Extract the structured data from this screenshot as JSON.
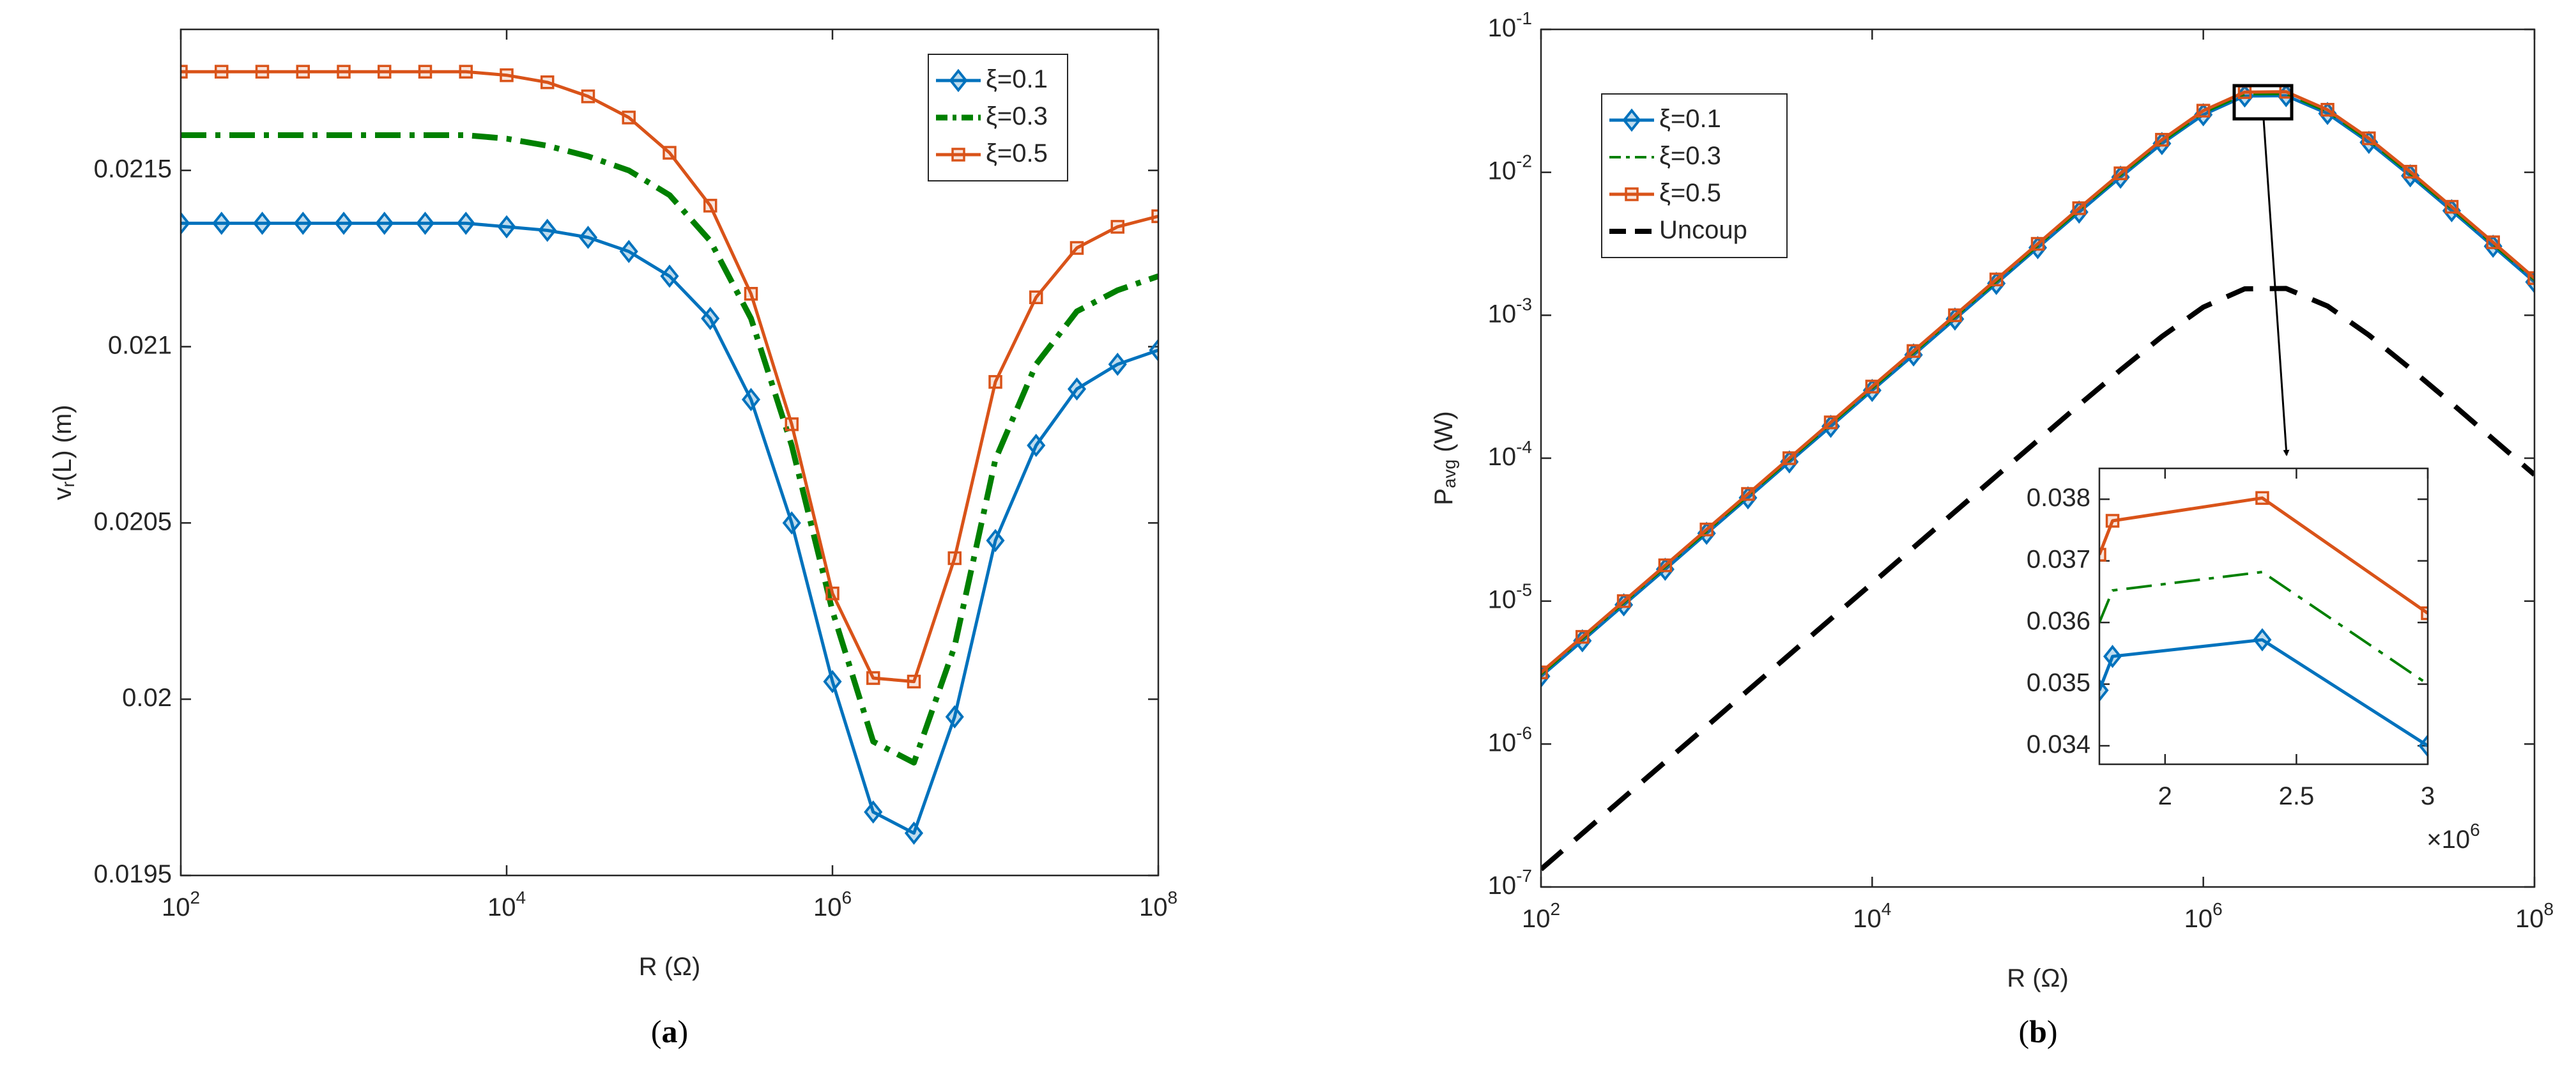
{
  "chart_data": [
    {
      "type": "line",
      "caption": "(a)",
      "xlabel": "R (Ω)",
      "ylabel": "v_{r}(L) (m)",
      "xscale": "log",
      "yscale": "linear",
      "x": [
        100.0,
        177.8,
        316.2,
        562.3,
        1000.0,
        1778.0,
        3162.0,
        5623.0,
        10000.0,
        17780.0,
        31620.0,
        56230.0,
        100000.0,
        177800.0,
        316200.0,
        562300.0,
        1000000.0,
        1778000.0,
        3162000.0,
        5623000.0,
        10000000.0,
        17780000.0,
        31620000.0,
        56230000.0,
        100000000.0
      ],
      "series": [
        {
          "name": "ξ=0.1",
          "color": "#0072BD",
          "linestyle": "solid",
          "linewidth": 5,
          "marker": "diamond",
          "values": [
            0.02135,
            0.02135,
            0.02135,
            0.02135,
            0.02135,
            0.02135,
            0.02135,
            0.02135,
            0.02134,
            0.02133,
            0.02131,
            0.02127,
            0.0212,
            0.02108,
            0.02085,
            0.0205,
            0.02005,
            0.01968,
            0.01962,
            0.01995,
            0.02045,
            0.02072,
            0.02088,
            0.02095,
            0.02099
          ]
        },
        {
          "name": "ξ=0.3",
          "color": "#008000",
          "linestyle": "dashdot",
          "linewidth": 9,
          "marker": null,
          "values": [
            0.0216,
            0.0216,
            0.0216,
            0.0216,
            0.0216,
            0.0216,
            0.0216,
            0.0216,
            0.02159,
            0.02157,
            0.02154,
            0.0215,
            0.02143,
            0.0213,
            0.02108,
            0.02072,
            0.02025,
            0.01988,
            0.01982,
            0.02015,
            0.02068,
            0.02095,
            0.0211,
            0.02116,
            0.0212
          ]
        },
        {
          "name": "ξ=0.5",
          "color": "#D95319",
          "linestyle": "solid",
          "linewidth": 5,
          "marker": "square",
          "values": [
            0.02178,
            0.02178,
            0.02178,
            0.02178,
            0.02178,
            0.02178,
            0.02178,
            0.02178,
            0.02177,
            0.02175,
            0.02171,
            0.02165,
            0.02155,
            0.0214,
            0.02115,
            0.02078,
            0.0203,
            0.02006,
            0.02005,
            0.0204,
            0.0209,
            0.02114,
            0.02128,
            0.02134,
            0.02137
          ]
        }
      ],
      "xlim": [
        100.0,
        100000000.0
      ],
      "xticks": [
        {
          "value": 100.0,
          "label": "10^{2}"
        },
        {
          "value": 10000.0,
          "label": "10^{4}"
        },
        {
          "value": 1000000.0,
          "label": "10^{6}"
        },
        {
          "value": 100000000.0,
          "label": "10^{8}"
        }
      ],
      "ylim": [
        0.0195,
        0.0219
      ],
      "yticks": [
        0.0195,
        0.02,
        0.0205,
        0.021,
        0.0215
      ],
      "legend": "upper right",
      "grid": false
    },
    {
      "type": "line",
      "caption": "(b)",
      "xlabel": "R (Ω)",
      "ylabel": "P_{avg} (W)",
      "xscale": "log",
      "yscale": "log",
      "x": [
        100.0,
        177.8,
        316.2,
        562.3,
        1000.0,
        1778.0,
        3162.0,
        5623.0,
        10000.0,
        17780.0,
        31620.0,
        56230.0,
        100000.0,
        177800.0,
        316200.0,
        562300.0,
        1000000.0,
        1778000.0,
        3162000.0,
        5623000.0,
        10000000.0,
        17780000.0,
        31620000.0,
        56230000.0,
        100000000.0
      ],
      "series": [
        {
          "name": "ξ=0.1",
          "color": "#0072BD",
          "linestyle": "solid",
          "linewidth": 5,
          "marker": "diamond",
          "values": [
            2.98e-06,
            5.28e-06,
            9.42e-06,
            1.67e-05,
            2.98e-05,
            5.28e-05,
            9.42e-05,
            0.000167,
            0.000298,
            0.000528,
            0.000941,
            0.00167,
            0.00297,
            0.00527,
            0.00925,
            0.0159,
            0.0253,
            0.0342,
            0.0344,
            0.0258,
            0.0162,
            0.00946,
            0.00539,
            0.00304,
            0.00171
          ]
        },
        {
          "name": "ξ=0.3",
          "color": "#008000",
          "linestyle": "dashdot",
          "linewidth": 4,
          "marker": null,
          "values": [
            3.07e-06,
            5.45e-06,
            9.72e-06,
            1.73e-05,
            3.07e-05,
            5.45e-05,
            9.72e-05,
            0.000173,
            0.000307,
            0.000545,
            0.00097,
            0.00172,
            0.00306,
            0.00543,
            0.00953,
            0.0163,
            0.0261,
            0.0352,
            0.0354,
            0.0266,
            0.0167,
            0.00975,
            0.00556,
            0.00314,
            0.00176
          ]
        },
        {
          "name": "ξ=0.5",
          "color": "#D95319",
          "linestyle": "solid",
          "linewidth": 5,
          "marker": "square",
          "values": [
            3.17e-06,
            5.62e-06,
            1e-05,
            1.78e-05,
            3.17e-05,
            5.62e-05,
            0.0001,
            0.000178,
            0.000317,
            0.000562,
            0.001,
            0.00178,
            0.00316,
            0.00561,
            0.00984,
            0.0169,
            0.027,
            0.0364,
            0.0366,
            0.0274,
            0.0173,
            0.0101,
            0.00574,
            0.00324,
            0.00182
          ]
        },
        {
          "name": "Uncoup",
          "color": "#000000",
          "linestyle": "dashed",
          "linewidth": 8,
          "marker": null,
          "values": [
            1.33e-07,
            2.37e-07,
            4.22e-07,
            7.5e-07,
            1.33e-06,
            2.37e-06,
            4.22e-06,
            7.5e-06,
            1.33e-05,
            2.37e-05,
            4.22e-05,
            7.5e-05,
            0.000133,
            0.000236,
            0.000414,
            0.00071,
            0.00114,
            0.00153,
            0.00154,
            0.00116,
            0.000726,
            0.000424,
            0.000242,
            0.000136,
            7.66e-05
          ]
        }
      ],
      "xlim": [
        100.0,
        100000000.0
      ],
      "xticks": [
        {
          "value": 100.0,
          "label": "10^{2}"
        },
        {
          "value": 10000.0,
          "label": "10^{4}"
        },
        {
          "value": 1000000.0,
          "label": "10^{6}"
        },
        {
          "value": 100000000.0,
          "label": "10^{8}"
        }
      ],
      "ylim": [
        1e-07,
        0.1
      ],
      "yticks": [
        {
          "value": 1e-07,
          "label": "10^{-7}"
        },
        {
          "value": 1e-06,
          "label": "10^{-6}"
        },
        {
          "value": 1e-05,
          "label": "10^{-5}"
        },
        {
          "value": 0.0001,
          "label": "10^{-4}"
        },
        {
          "value": 0.001,
          "label": "10^{-3}"
        },
        {
          "value": 0.01,
          "label": "10^{-2}"
        },
        {
          "value": 0.1,
          "label": "10^{-1}"
        }
      ],
      "legend": "upper left",
      "grid": false
    },
    {
      "type": "line",
      "xscale": "linear",
      "yscale": "linear",
      "x_exponent_label": "×10^{6}",
      "x": [
        1750000.0,
        1800000.0,
        2370000.0,
        3000000.0
      ],
      "series": [
        {
          "color": "#0072BD",
          "linestyle": "solid",
          "linewidth": 5,
          "marker": "diamond",
          "values": [
            0.0349,
            0.03545,
            0.03572,
            0.034
          ]
        },
        {
          "color": "#008000",
          "linestyle": "dashdot",
          "linewidth": 4,
          "marker": null,
          "values": [
            0.036,
            0.03652,
            0.03682,
            0.035
          ]
        },
        {
          "color": "#D95319",
          "linestyle": "solid",
          "linewidth": 5,
          "marker": "square",
          "values": [
            0.0371,
            0.03765,
            0.03802,
            0.03615
          ]
        }
      ],
      "xlim": [
        1750000.0,
        3000000.0
      ],
      "xticks": [
        {
          "value": 2000000.0,
          "label": "2"
        },
        {
          "value": 2500000.0,
          "label": "2.5"
        },
        {
          "value": 3000000.0,
          "label": "3"
        }
      ],
      "ylim": [
        0.0337,
        0.0385
      ],
      "yticks": [
        0.034,
        0.035,
        0.036,
        0.037,
        0.038
      ],
      "grid": false
    }
  ]
}
